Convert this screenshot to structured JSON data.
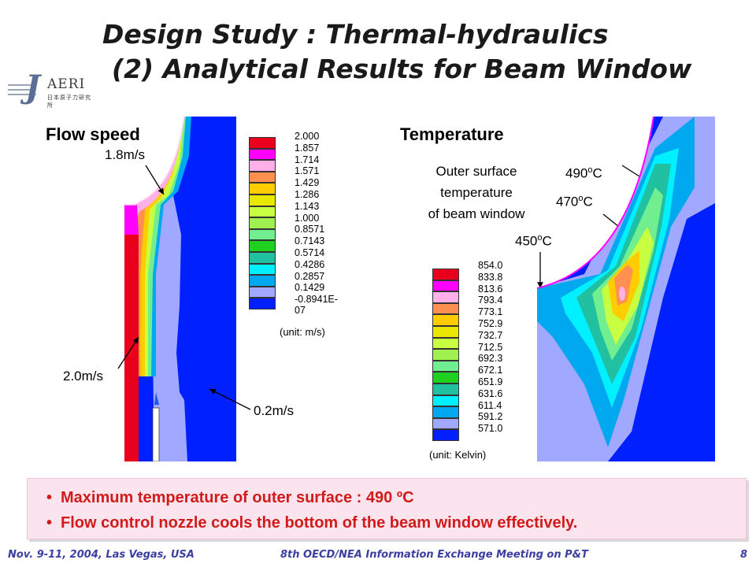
{
  "slide": {
    "title_line1": "Design Study : Thermal-hydraulics",
    "title_line2": "(2) Analytical Results for Beam Window"
  },
  "logo": {
    "letter": "J",
    "text": "AERI",
    "japanese": "日本原子力研究所"
  },
  "flow": {
    "label": "Flow speed",
    "annotation_top": "1.8m/s",
    "annotation_left": "2.0m/s",
    "annotation_right": "0.2m/s",
    "legend_values": [
      "2.000",
      "1.857",
      "1.714",
      "1.571",
      "1.429",
      "1.286",
      "1.143",
      "1.000",
      "0.8571",
      "0.7143",
      "0.5714",
      "0.4286",
      "0.2857",
      "0.1429",
      "-0.8941E-07"
    ],
    "unit": "(unit: m/s)"
  },
  "temperature": {
    "label": "Temperature",
    "outer_surface_line1": "Outer surface",
    "outer_surface_line2": "temperature",
    "outer_surface_line3": "of beam window",
    "ann_490": "490",
    "ann_470": "470",
    "ann_450": "450",
    "degree": "o",
    "unit_c": "C",
    "legend_values": [
      "854.0",
      "833.8",
      "813.6",
      "793.4",
      "773.1",
      "752.9",
      "732.7",
      "712.5",
      "692.3",
      "672.1",
      "651.9",
      "631.6",
      "611.4",
      "591.2",
      "571.0"
    ],
    "unit": "(unit: Kelvin)"
  },
  "legend_colors": [
    "#e8001c",
    "#ff00ff",
    "#ffb0e8",
    "#ff9050",
    "#ffcc00",
    "#e8e800",
    "#c8ff40",
    "#a0f050",
    "#70ee90",
    "#20d020",
    "#20c0a0",
    "#00f0ff",
    "#00a8f0",
    "#a0a8ff",
    "#0020ff"
  ],
  "summary": {
    "bullet1": "Maximum temperature of outer surface : 490 ºC",
    "bullet2": "Flow control nozzle cools the bottom of the beam window effectively."
  },
  "footer": {
    "left": "Nov. 9-11, 2004, Las Vegas, USA",
    "center": "8th OECD/NEA Information Exchange Meeting on P&T",
    "page": "8"
  }
}
